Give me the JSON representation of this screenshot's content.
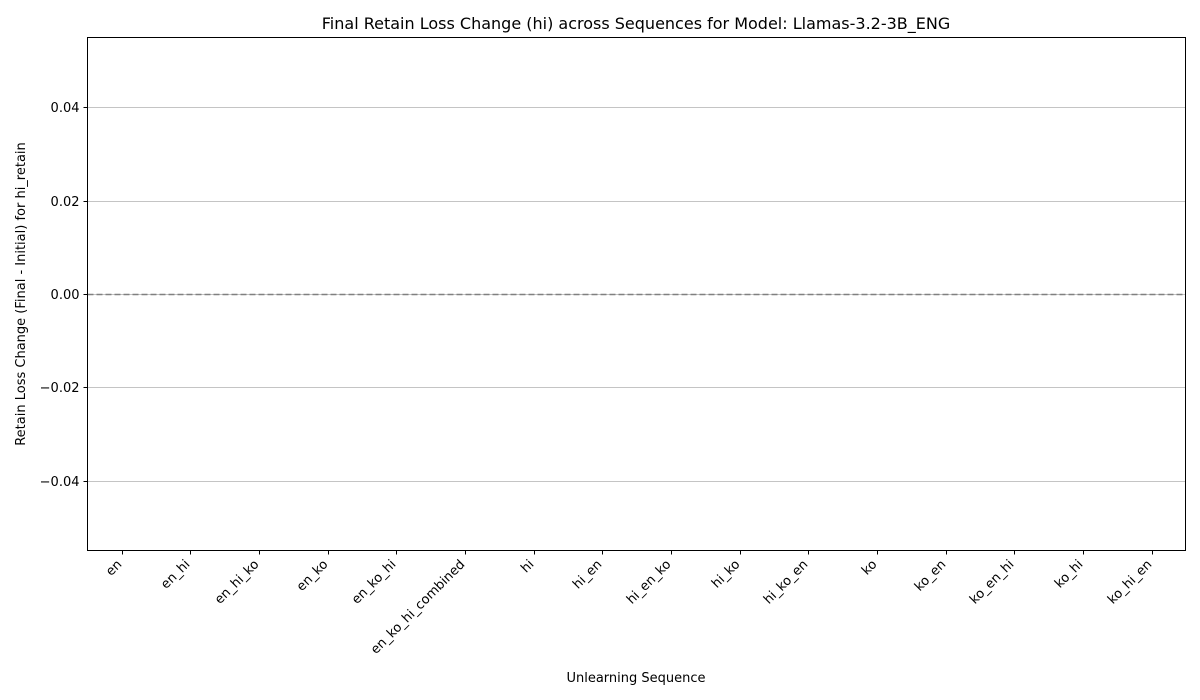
{
  "chart_data": {
    "type": "bar",
    "title": "Final Retain Loss Change (hi) across Sequences for Model: Llamas-3.2-3B_ENG",
    "xlabel": "Unlearning Sequence",
    "ylabel": "Retain Loss Change (Final - Initial) for hi_retain",
    "categories": [
      "en",
      "en_hi",
      "en_hi_ko",
      "en_ko",
      "en_ko_hi",
      "en_ko_hi_combined",
      "hi",
      "hi_en",
      "hi_en_ko",
      "hi_ko",
      "hi_ko_en",
      "ko",
      "ko_en",
      "ko_en_hi",
      "ko_hi",
      "ko_hi_en"
    ],
    "values": [
      0,
      0,
      0,
      0,
      0,
      0,
      0,
      0,
      0,
      0,
      0,
      0,
      0,
      0,
      0,
      0
    ],
    "ylim": [
      -0.055,
      0.055
    ],
    "yticks": [
      -0.04,
      -0.02,
      0.0,
      0.02,
      0.04
    ],
    "ytick_labels": [
      "−0.04",
      "−0.02",
      "0.00",
      "0.02",
      "0.04"
    ],
    "grid": "y",
    "reference_line": 0,
    "colors": {
      "grid": "#b0b0b0",
      "reference_line": "#808080",
      "axis": "#000000",
      "bar": "#1f77b4"
    }
  }
}
